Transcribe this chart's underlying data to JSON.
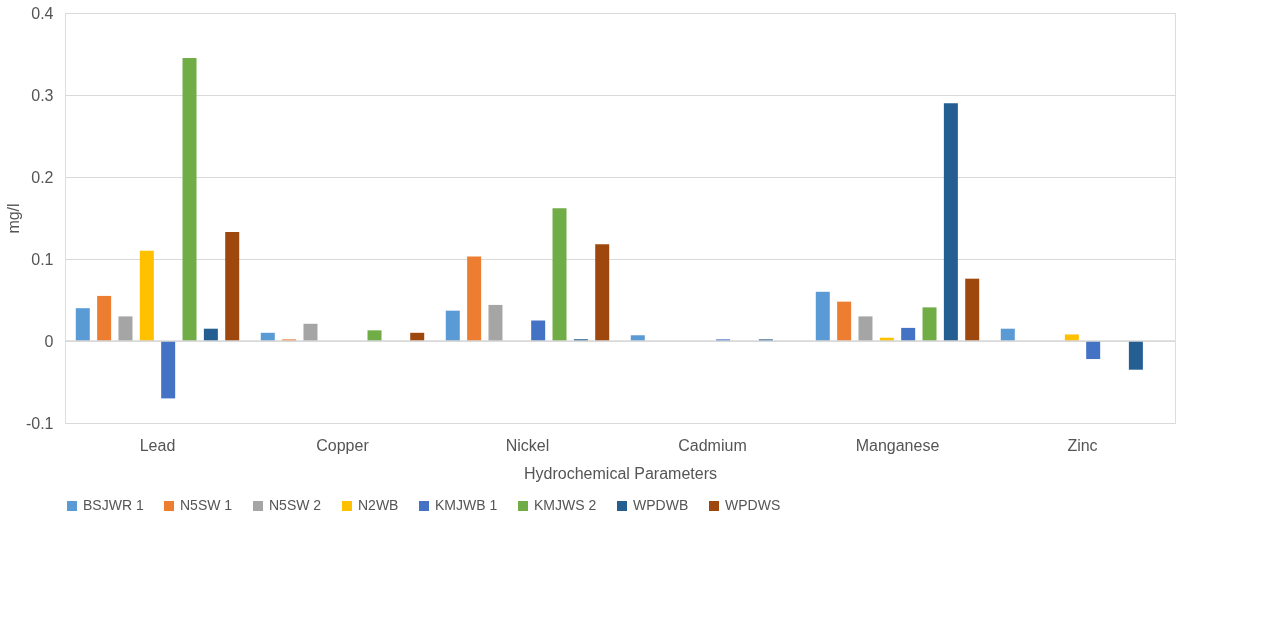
{
  "chart_data": {
    "type": "bar",
    "xlabel": "Hydrochemical Parameters",
    "ylabel": "mg/l",
    "categories": [
      "Lead",
      "Copper",
      "Nickel",
      "Cadmium",
      "Manganese",
      "Zinc"
    ],
    "series": [
      {
        "name": "BSJWR 1",
        "color": "#5b9bd5",
        "values": [
          0.04,
          0.01,
          0.037,
          0.007,
          0.06,
          0.015
        ]
      },
      {
        "name": "N5SW 1",
        "color": "#ed7d31",
        "values": [
          0.055,
          0.002,
          0.103,
          0,
          0.048,
          0
        ]
      },
      {
        "name": "N5SW 2",
        "color": "#a5a5a5",
        "values": [
          0.03,
          0.021,
          0.044,
          0,
          0.03,
          0
        ]
      },
      {
        "name": "N2WB",
        "color": "#ffc000",
        "values": [
          0.11,
          0,
          0,
          0,
          0.004,
          0.008
        ]
      },
      {
        "name": "KMJWB 1",
        "color": "#4472c4",
        "values": [
          -0.07,
          0,
          0.025,
          0.002,
          0.016,
          -0.022
        ]
      },
      {
        "name": "KMJWS 2",
        "color": "#70ad47",
        "values": [
          0.345,
          0.013,
          0.162,
          0,
          0.041,
          0
        ]
      },
      {
        "name": "WPDWB",
        "color": "#255e91",
        "values": [
          0.015,
          0,
          0.002,
          0.002,
          0.29,
          -0.035
        ]
      },
      {
        "name": "WPDWS",
        "color": "#9e480e",
        "values": [
          0.133,
          0.01,
          0.118,
          0,
          0.076,
          0
        ]
      }
    ],
    "ylim": [
      -0.1,
      0.4
    ],
    "yticks": [
      -0.1,
      0,
      0.1,
      0.2,
      0.3,
      0.4
    ],
    "grid": "y",
    "legend": "bottom"
  }
}
